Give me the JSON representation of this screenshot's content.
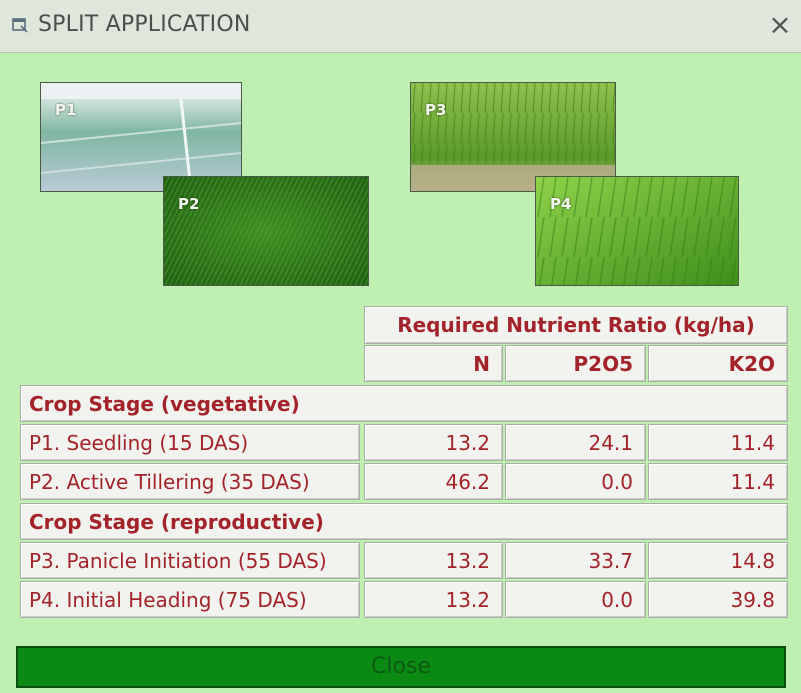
{
  "window": {
    "title": "SPLIT APPLICATION",
    "close_glyph": "×"
  },
  "photos": [
    {
      "label": "P1",
      "icon": "seedling-field-photo"
    },
    {
      "label": "P2",
      "icon": "tillering-crop-photo"
    },
    {
      "label": "P3",
      "icon": "panicle-initiation-photo"
    },
    {
      "label": "P4",
      "icon": "heading-crop-photo"
    }
  ],
  "table": {
    "title": "Required Nutrient Ratio (kg/ha)",
    "columns": [
      "N",
      "P2O5",
      "K2O"
    ],
    "sections": [
      {
        "heading": "Crop Stage (vegetative)",
        "rows": [
          {
            "stage": "P1. Seedling (15 DAS)",
            "N": "13.2",
            "P2O5": "24.1",
            "K2O": "11.4"
          },
          {
            "stage": "P2. Active Tillering (35 DAS)",
            "N": "46.2",
            "P2O5": "0.0",
            "K2O": "11.4"
          }
        ]
      },
      {
        "heading": "Crop Stage (reproductive)",
        "rows": [
          {
            "stage": "P3. Panicle Initiation (55 DAS)",
            "N": "13.2",
            "P2O5": "33.7",
            "K2O": "14.8"
          },
          {
            "stage": "P4. Initial Heading (75 DAS)",
            "N": "13.2",
            "P2O5": "0.0",
            "K2O": "39.8"
          }
        ]
      }
    ]
  },
  "footer": {
    "close_label": "Close"
  },
  "colors": {
    "background": "#bff0b2",
    "table_text": "#a3232a",
    "close_button": "#0a8a12"
  }
}
